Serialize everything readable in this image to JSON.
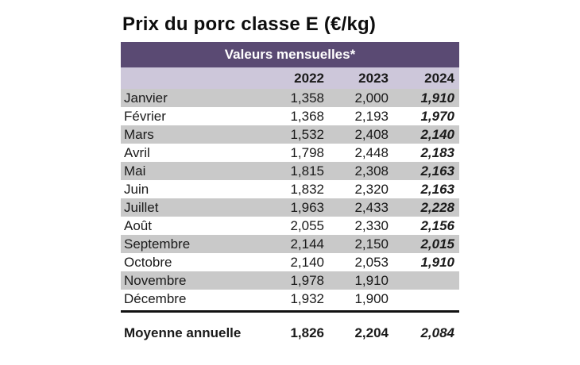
{
  "title": "Prix du porc classe E (€/kg)",
  "table": {
    "band_label": "Valeurs mensuelles*",
    "years": [
      "2022",
      "2023",
      "2024"
    ],
    "rows": [
      {
        "month": "Janvier",
        "y2022": "1,358",
        "y2023": "2,000",
        "y2024": "1,910"
      },
      {
        "month": "Février",
        "y2022": "1,368",
        "y2023": "2,193",
        "y2024": "1,970"
      },
      {
        "month": "Mars",
        "y2022": "1,532",
        "y2023": "2,408",
        "y2024": "2,140"
      },
      {
        "month": "Avril",
        "y2022": "1,798",
        "y2023": "2,448",
        "y2024": "2,183"
      },
      {
        "month": "Mai",
        "y2022": "1,815",
        "y2023": "2,308",
        "y2024": "2,163"
      },
      {
        "month": "Juin",
        "y2022": "1,832",
        "y2023": "2,320",
        "y2024": "2,163"
      },
      {
        "month": "Juillet",
        "y2022": "1,963",
        "y2023": "2,433",
        "y2024": "2,228"
      },
      {
        "month": "Août",
        "y2022": "2,055",
        "y2023": "2,330",
        "y2024": "2,156"
      },
      {
        "month": "Septembre",
        "y2022": "2,144",
        "y2023": "2,150",
        "y2024": "2,015"
      },
      {
        "month": "Octobre",
        "y2022": "2,140",
        "y2023": "2,053",
        "y2024": "1,910"
      },
      {
        "month": "Novembre",
        "y2022": "1,978",
        "y2023": "1,910",
        "y2024": ""
      },
      {
        "month": "Décembre",
        "y2022": "1,932",
        "y2023": "1,900",
        "y2024": ""
      }
    ],
    "summary": {
      "label": "Moyenne annuelle",
      "y2022": "1,826",
      "y2023": "2,204",
      "y2024": "2,084"
    }
  },
  "colors": {
    "band_bg": "#5a4a73",
    "band_text": "#ffffff",
    "year_row_bg": "#cdc7da",
    "stripe_bg": "#c9c9c9",
    "text": "#1a1a1a"
  },
  "chart_data": {
    "type": "table",
    "title": "Prix du porc classe E (€/kg)",
    "subtitle": "Valeurs mensuelles*",
    "unit": "€/kg",
    "categories": [
      "Janvier",
      "Février",
      "Mars",
      "Avril",
      "Mai",
      "Juin",
      "Juillet",
      "Août",
      "Septembre",
      "Octobre",
      "Novembre",
      "Décembre"
    ],
    "series": [
      {
        "name": "2022",
        "values": [
          1.358,
          1.368,
          1.532,
          1.798,
          1.815,
          1.832,
          1.963,
          2.055,
          2.144,
          2.14,
          1.978,
          1.932
        ]
      },
      {
        "name": "2023",
        "values": [
          2.0,
          2.193,
          2.408,
          2.448,
          2.308,
          2.32,
          2.433,
          2.33,
          2.15,
          2.053,
          1.91,
          1.9
        ]
      },
      {
        "name": "2024",
        "values": [
          1.91,
          1.97,
          2.14,
          2.183,
          2.163,
          2.163,
          2.228,
          2.156,
          2.015,
          1.91,
          null,
          null
        ]
      }
    ],
    "annual_mean": {
      "2022": 1.826,
      "2023": 2.204,
      "2024": 2.084
    }
  }
}
